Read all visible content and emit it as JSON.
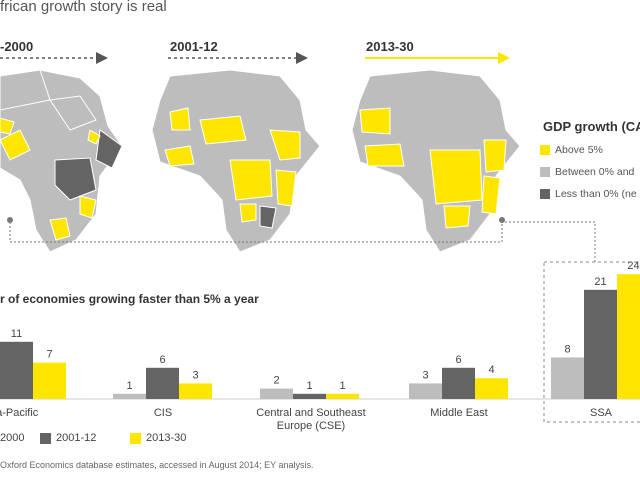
{
  "title": "frican growth story is real",
  "periods": [
    "-2000",
    "2001-12",
    "2013-30"
  ],
  "legend": {
    "title": "GDP growth (CA",
    "items": [
      {
        "label": "Above 5%",
        "color": "#FFE600"
      },
      {
        "label": "Between 0% and",
        "color": "#BDBDBD"
      },
      {
        "label": "Less than 0% (ne",
        "color": "#646464"
      }
    ]
  },
  "bar_chart_title": "r of economies growing faster than 5% a year",
  "bottom_legend": [
    {
      "label": "2000",
      "color": "#646464"
    },
    {
      "label": "2001-12",
      "color": "#646464"
    },
    {
      "label": "2013-30",
      "color": "#FFE600"
    }
  ],
  "source": "Oxford Economics database estimates, accessed in August 2014; EY analysis.",
  "chart_data": {
    "type": "bar",
    "categories": [
      "ia-Pacific",
      "CIS",
      "Central and Southeast Europe (CSE)",
      "Middle East",
      "SSA"
    ],
    "series": [
      {
        "name": "2000",
        "color": "#BDBDBD",
        "values": [
          null,
          1,
          2,
          3,
          8
        ]
      },
      {
        "name": "2001-12",
        "color": "#646464",
        "values": [
          11,
          6,
          1,
          6,
          21
        ]
      },
      {
        "name": "2013-30",
        "color": "#FFE600",
        "values": [
          7,
          3,
          1,
          4,
          24
        ]
      }
    ],
    "value_label_text": [
      [
        "",
        "1",
        "2",
        "3",
        "8"
      ],
      [
        "11",
        "6",
        "1",
        "6",
        "21"
      ],
      [
        "7",
        "3",
        "1",
        "4",
        "24"
      ]
    ],
    "ylim": [
      0,
      25
    ]
  }
}
